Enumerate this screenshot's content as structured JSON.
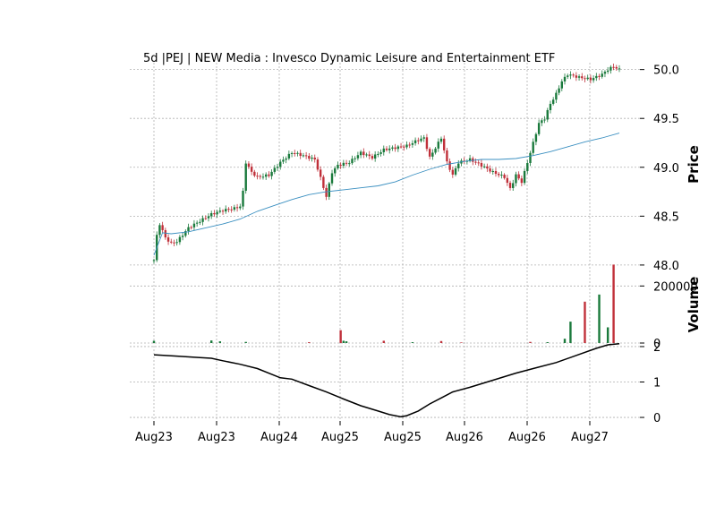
{
  "chart_data": {
    "type": "candlestick",
    "title": "5d |PEJ | NEW Media : Invesco Dynamic Leisure and Entertainment ETF",
    "x_tick_labels": [
      "Aug23",
      "Aug23",
      "Aug24",
      "Aug25",
      "Aug25",
      "Aug26",
      "Aug26",
      "Aug27"
    ],
    "colors": {
      "up": "#1a7a3c",
      "down": "#c0303a",
      "ma_line": "#3a8fc0",
      "indicator_line": "#000000"
    },
    "grid": true,
    "panels": [
      {
        "name": "price",
        "ylabel": "Price",
        "ylim": [
          47.99,
          50.07
        ],
        "y_ticks": [
          "48.0",
          "48.5",
          "49.0",
          "49.5",
          "50.0"
        ],
        "y_tick_values": [
          48.0,
          48.5,
          49.0,
          49.5,
          50.0
        ],
        "close_series": [
          [
            0,
            48.05
          ],
          [
            1,
            48.3
          ],
          [
            2,
            48.42
          ],
          [
            4,
            48.28
          ],
          [
            6,
            48.22
          ],
          [
            8,
            48.24
          ],
          [
            12,
            48.38
          ],
          [
            16,
            48.45
          ],
          [
            20,
            48.52
          ],
          [
            24,
            48.56
          ],
          [
            28,
            48.58
          ],
          [
            30,
            48.6
          ],
          [
            31,
            48.75
          ],
          [
            32,
            49.05
          ],
          [
            34,
            48.95
          ],
          [
            36,
            48.9
          ],
          [
            40,
            48.92
          ],
          [
            44,
            49.05
          ],
          [
            48,
            49.15
          ],
          [
            52,
            49.12
          ],
          [
            56,
            49.08
          ],
          [
            60,
            48.7
          ],
          [
            62,
            48.95
          ],
          [
            64,
            49.02
          ],
          [
            68,
            49.05
          ],
          [
            72,
            49.15
          ],
          [
            76,
            49.1
          ],
          [
            80,
            49.18
          ],
          [
            84,
            49.2
          ],
          [
            88,
            49.22
          ],
          [
            92,
            49.28
          ],
          [
            94,
            49.3
          ],
          [
            96,
            49.1
          ],
          [
            98,
            49.2
          ],
          [
            100,
            49.3
          ],
          [
            102,
            49.05
          ],
          [
            104,
            48.92
          ],
          [
            106,
            49.05
          ],
          [
            110,
            49.08
          ],
          [
            114,
            49.02
          ],
          [
            118,
            48.95
          ],
          [
            122,
            48.9
          ],
          [
            124,
            48.78
          ],
          [
            126,
            48.92
          ],
          [
            128,
            48.85
          ],
          [
            130,
            49.05
          ],
          [
            132,
            49.25
          ],
          [
            134,
            49.45
          ],
          [
            136,
            49.5
          ],
          [
            138,
            49.65
          ],
          [
            140,
            49.75
          ],
          [
            142,
            49.88
          ],
          [
            144,
            49.95
          ],
          [
            148,
            49.92
          ],
          [
            152,
            49.9
          ],
          [
            156,
            49.95
          ],
          [
            158,
            50.0
          ],
          [
            160,
            50.03
          ],
          [
            162,
            50.0
          ]
        ],
        "moving_average": [
          [
            0,
            48.1
          ],
          [
            3,
            48.33
          ],
          [
            6,
            48.32
          ],
          [
            12,
            48.34
          ],
          [
            18,
            48.38
          ],
          [
            24,
            48.42
          ],
          [
            30,
            48.47
          ],
          [
            36,
            48.55
          ],
          [
            42,
            48.61
          ],
          [
            48,
            48.67
          ],
          [
            54,
            48.72
          ],
          [
            60,
            48.75
          ],
          [
            66,
            48.77
          ],
          [
            72,
            48.79
          ],
          [
            78,
            48.81
          ],
          [
            84,
            48.85
          ],
          [
            90,
            48.92
          ],
          [
            96,
            48.98
          ],
          [
            102,
            49.03
          ],
          [
            108,
            49.06
          ],
          [
            114,
            49.08
          ],
          [
            120,
            49.08
          ],
          [
            126,
            49.09
          ],
          [
            132,
            49.12
          ],
          [
            138,
            49.16
          ],
          [
            144,
            49.21
          ],
          [
            150,
            49.26
          ],
          [
            156,
            49.3
          ],
          [
            162,
            49.35
          ]
        ]
      },
      {
        "name": "volume",
        "ylabel": "Volume",
        "ylim": [
          0,
          270000
        ],
        "y_ticks": [
          "0",
          "200000"
        ],
        "y_tick_values": [
          0,
          200000
        ],
        "bars": [
          [
            0,
            8000,
            "up"
          ],
          [
            20,
            9000,
            "up"
          ],
          [
            23,
            6000,
            "up"
          ],
          [
            32,
            4000,
            "up"
          ],
          [
            54,
            3000,
            "down"
          ],
          [
            65,
            45000,
            "down"
          ],
          [
            66,
            8000,
            "up"
          ],
          [
            67,
            6000,
            "up"
          ],
          [
            80,
            8000,
            "down"
          ],
          [
            90,
            3000,
            "up"
          ],
          [
            100,
            7000,
            "down"
          ],
          [
            107,
            2000,
            "down"
          ],
          [
            131,
            4000,
            "down"
          ],
          [
            137,
            3000,
            "up"
          ],
          [
            143,
            15000,
            "up"
          ],
          [
            145,
            75000,
            "up"
          ],
          [
            150,
            145000,
            "down"
          ],
          [
            155,
            170000,
            "up"
          ],
          [
            158,
            55000,
            "up"
          ],
          [
            160,
            275000,
            "down"
          ]
        ]
      },
      {
        "name": "indicator",
        "ylabel": "",
        "ylim": [
          -0.1,
          2.1
        ],
        "y_ticks": [
          "0",
          "1",
          "2"
        ],
        "y_tick_values": [
          0,
          1,
          2
        ],
        "series": [
          [
            0,
            1.77
          ],
          [
            8,
            1.73
          ],
          [
            16,
            1.69
          ],
          [
            20,
            1.67
          ],
          [
            24,
            1.6
          ],
          [
            30,
            1.5
          ],
          [
            36,
            1.38
          ],
          [
            44,
            1.12
          ],
          [
            48,
            1.08
          ],
          [
            54,
            0.9
          ],
          [
            60,
            0.72
          ],
          [
            66,
            0.52
          ],
          [
            72,
            0.33
          ],
          [
            78,
            0.18
          ],
          [
            82,
            0.08
          ],
          [
            86,
            0.02
          ],
          [
            88,
            0.05
          ],
          [
            92,
            0.18
          ],
          [
            96,
            0.38
          ],
          [
            100,
            0.55
          ],
          [
            104,
            0.72
          ],
          [
            110,
            0.85
          ],
          [
            118,
            1.05
          ],
          [
            126,
            1.25
          ],
          [
            132,
            1.38
          ],
          [
            140,
            1.55
          ],
          [
            148,
            1.78
          ],
          [
            154,
            1.95
          ],
          [
            158,
            2.05
          ],
          [
            162,
            2.08
          ]
        ]
      }
    ]
  }
}
